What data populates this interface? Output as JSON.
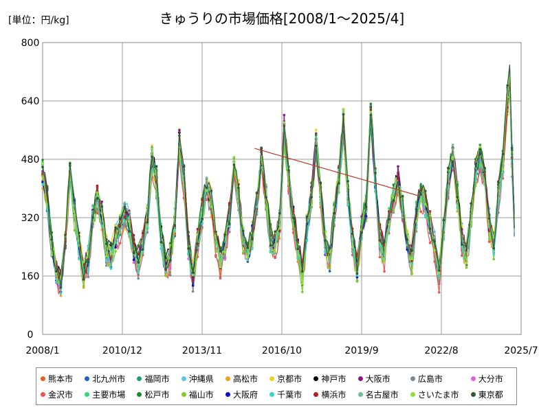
{
  "chart_data": {
    "type": "line",
    "title": "きゅうりの市場価格[2008/1～2025/4]",
    "unit_label": "[単位：円/kg]",
    "ylim": [
      0,
      800
    ],
    "yticks": [
      "0",
      "160",
      "320",
      "480",
      "640",
      "800"
    ],
    "xticks": [
      "2008/1",
      "2010/12",
      "2013/11",
      "2016/10",
      "2019/9",
      "2022/8",
      "2025/7"
    ],
    "x_range": [
      "2008/1",
      "2025/7"
    ],
    "grid": true,
    "legend_position": "bottom",
    "base_series": [
      {
        "x": "2008/1",
        "y": 440
      },
      {
        "x": "2008/3",
        "y": 370
      },
      {
        "x": "2008/5",
        "y": 240
      },
      {
        "x": "2008/7",
        "y": 170
      },
      {
        "x": "2008/9",
        "y": 140
      },
      {
        "x": "2008/11",
        "y": 260
      },
      {
        "x": "2009/1",
        "y": 440
      },
      {
        "x": "2009/3",
        "y": 330
      },
      {
        "x": "2009/5",
        "y": 240
      },
      {
        "x": "2009/7",
        "y": 170
      },
      {
        "x": "2009/9",
        "y": 200
      },
      {
        "x": "2009/11",
        "y": 320
      },
      {
        "x": "2010/1",
        "y": 370
      },
      {
        "x": "2010/3",
        "y": 320
      },
      {
        "x": "2010/5",
        "y": 230
      },
      {
        "x": "2010/7",
        "y": 210
      },
      {
        "x": "2010/9",
        "y": 260
      },
      {
        "x": "2010/11",
        "y": 300
      },
      {
        "x": "2011/1",
        "y": 330
      },
      {
        "x": "2011/3",
        "y": 300
      },
      {
        "x": "2011/5",
        "y": 230
      },
      {
        "x": "2011/7",
        "y": 200
      },
      {
        "x": "2011/9",
        "y": 250
      },
      {
        "x": "2011/11",
        "y": 320
      },
      {
        "x": "2012/1",
        "y": 480
      },
      {
        "x": "2012/3",
        "y": 420
      },
      {
        "x": "2012/5",
        "y": 260
      },
      {
        "x": "2012/7",
        "y": 190
      },
      {
        "x": "2012/9",
        "y": 210
      },
      {
        "x": "2012/11",
        "y": 300
      },
      {
        "x": "2013/1",
        "y": 520
      },
      {
        "x": "2013/3",
        "y": 420
      },
      {
        "x": "2013/5",
        "y": 240
      },
      {
        "x": "2013/7",
        "y": 160
      },
      {
        "x": "2013/9",
        "y": 250
      },
      {
        "x": "2013/11",
        "y": 330
      },
      {
        "x": "2014/1",
        "y": 410
      },
      {
        "x": "2014/3",
        "y": 360
      },
      {
        "x": "2014/5",
        "y": 260
      },
      {
        "x": "2014/7",
        "y": 200
      },
      {
        "x": "2014/9",
        "y": 240
      },
      {
        "x": "2014/11",
        "y": 320
      },
      {
        "x": "2015/1",
        "y": 460
      },
      {
        "x": "2015/3",
        "y": 380
      },
      {
        "x": "2015/5",
        "y": 260
      },
      {
        "x": "2015/7",
        "y": 220
      },
      {
        "x": "2015/9",
        "y": 270
      },
      {
        "x": "2015/11",
        "y": 350
      },
      {
        "x": "2016/1",
        "y": 480
      },
      {
        "x": "2016/3",
        "y": 380
      },
      {
        "x": "2016/5",
        "y": 260
      },
      {
        "x": "2016/7",
        "y": 240
      },
      {
        "x": "2016/9",
        "y": 300
      },
      {
        "x": "2016/11",
        "y": 560
      },
      {
        "x": "2017/1",
        "y": 420
      },
      {
        "x": "2017/3",
        "y": 320
      },
      {
        "x": "2017/5",
        "y": 240
      },
      {
        "x": "2017/7",
        "y": 160
      },
      {
        "x": "2017/9",
        "y": 290
      },
      {
        "x": "2017/11",
        "y": 380
      },
      {
        "x": "2018/1",
        "y": 520
      },
      {
        "x": "2018/3",
        "y": 380
      },
      {
        "x": "2018/5",
        "y": 250
      },
      {
        "x": "2018/7",
        "y": 200
      },
      {
        "x": "2018/9",
        "y": 330
      },
      {
        "x": "2018/11",
        "y": 430
      },
      {
        "x": "2019/1",
        "y": 580
      },
      {
        "x": "2019/3",
        "y": 380
      },
      {
        "x": "2019/5",
        "y": 250
      },
      {
        "x": "2019/7",
        "y": 180
      },
      {
        "x": "2019/9",
        "y": 290
      },
      {
        "x": "2019/11",
        "y": 350
      },
      {
        "x": "2020/1",
        "y": 600
      },
      {
        "x": "2020/3",
        "y": 420
      },
      {
        "x": "2020/5",
        "y": 260
      },
      {
        "x": "2020/7",
        "y": 220
      },
      {
        "x": "2020/9",
        "y": 320
      },
      {
        "x": "2020/11",
        "y": 380
      },
      {
        "x": "2021/1",
        "y": 420
      },
      {
        "x": "2021/3",
        "y": 340
      },
      {
        "x": "2021/5",
        "y": 250
      },
      {
        "x": "2021/7",
        "y": 200
      },
      {
        "x": "2021/9",
        "y": 330
      },
      {
        "x": "2021/11",
        "y": 380
      },
      {
        "x": "2022/1",
        "y": 360
      },
      {
        "x": "2022/3",
        "y": 300
      },
      {
        "x": "2022/5",
        "y": 240
      },
      {
        "x": "2022/7",
        "y": 160
      },
      {
        "x": "2022/9",
        "y": 290
      },
      {
        "x": "2022/11",
        "y": 420
      },
      {
        "x": "2023/1",
        "y": 490
      },
      {
        "x": "2023/3",
        "y": 380
      },
      {
        "x": "2023/5",
        "y": 260
      },
      {
        "x": "2023/7",
        "y": 210
      },
      {
        "x": "2023/9",
        "y": 320
      },
      {
        "x": "2023/11",
        "y": 440
      },
      {
        "x": "2024/1",
        "y": 480
      },
      {
        "x": "2024/3",
        "y": 430
      },
      {
        "x": "2024/5",
        "y": 300
      },
      {
        "x": "2024/7",
        "y": 240
      },
      {
        "x": "2024/9",
        "y": 380
      },
      {
        "x": "2024/11",
        "y": 470
      },
      {
        "x": "2025/1",
        "y": 640
      },
      {
        "x": "2025/2",
        "y": 700
      },
      {
        "x": "2025/3",
        "y": 480
      },
      {
        "x": "2025/4",
        "y": 300
      }
    ],
    "trendline": {
      "x": [
        "2015/10",
        "2021/10"
      ],
      "y": [
        510,
        380
      ],
      "color": "#c0392b"
    },
    "series": [
      {
        "name": "熊本市",
        "color": "#f05a28"
      },
      {
        "name": "北九州市",
        "color": "#1f5fd0"
      },
      {
        "name": "福岡市",
        "color": "#1a9c7a"
      },
      {
        "name": "沖縄県",
        "color": "#5bc0eb"
      },
      {
        "name": "高松市",
        "color": "#f0a020"
      },
      {
        "name": "京都市",
        "color": "#f2d21c"
      },
      {
        "name": "神戸市",
        "color": "#000000"
      },
      {
        "name": "大阪市",
        "color": "#8b1a8b"
      },
      {
        "name": "広島市",
        "color": "#7a8a99"
      },
      {
        "name": "大分市",
        "color": "#e066d8"
      },
      {
        "name": "金沢市",
        "color": "#ef5350"
      },
      {
        "name": "主要市場",
        "color": "#39d67a"
      },
      {
        "name": "松戸市",
        "color": "#1e8a2a"
      },
      {
        "name": "福山市",
        "color": "#7ccb2a"
      },
      {
        "name": "大阪府",
        "color": "#1010c8"
      },
      {
        "name": "千葉市",
        "color": "#3ad6c6"
      },
      {
        "name": "横浜市",
        "color": "#b22222"
      },
      {
        "name": "名古屋市",
        "color": "#6fbf95"
      },
      {
        "name": "さいたま市",
        "color": "#8fe03a"
      },
      {
        "name": "東京都",
        "color": "#2e5a3a"
      }
    ]
  }
}
